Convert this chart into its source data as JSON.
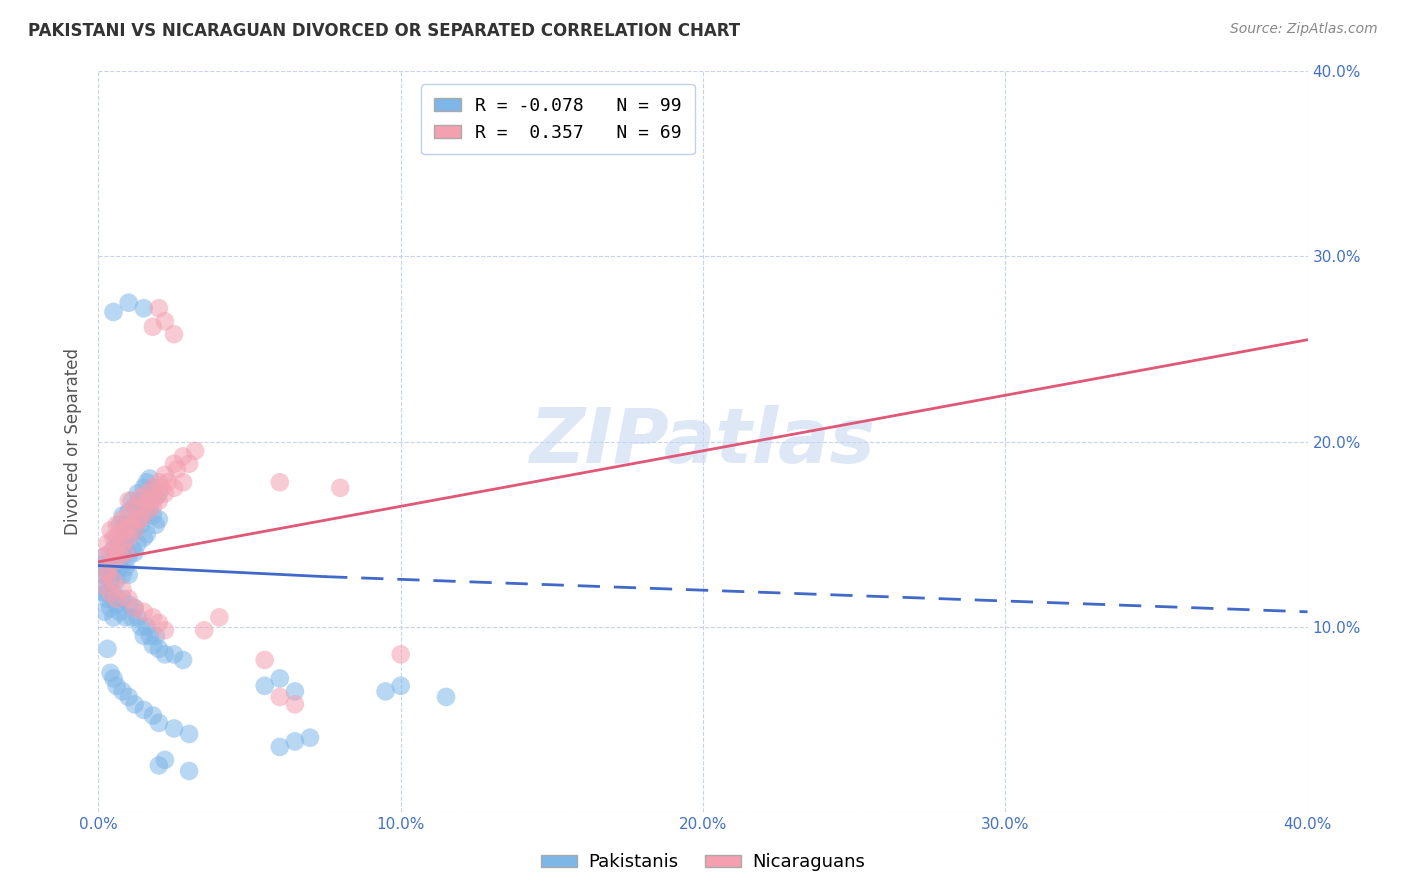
{
  "title": "PAKISTANI VS NICARAGUAN DIVORCED OR SEPARATED CORRELATION CHART",
  "source": "Source: ZipAtlas.com",
  "ylabel": "Divorced or Separated",
  "xlabel_pakistanis": "Pakistanis",
  "xlabel_nicaraguans": "Nicaraguans",
  "xlim": [
    0.0,
    0.4
  ],
  "ylim": [
    0.0,
    0.4
  ],
  "xticks": [
    0.0,
    0.1,
    0.2,
    0.3,
    0.4
  ],
  "yticks": [
    0.1,
    0.2,
    0.3,
    0.4
  ],
  "right_yticks": [
    0.1,
    0.2,
    0.3,
    0.4
  ],
  "tick_labels_x": [
    "0.0%",
    "10.0%",
    "20.0%",
    "30.0%",
    "40.0%"
  ],
  "tick_labels_y_right": [
    "10.0%",
    "20.0%",
    "30.0%",
    "40.0%"
  ],
  "blue_color": "#7EB6E8",
  "pink_color": "#F4A0B0",
  "blue_line_color": "#4169C8",
  "pink_line_color": "#E05878",
  "legend_blue_R": "-0.078",
  "legend_blue_N": "99",
  "legend_pink_R": "0.357",
  "legend_pink_N": "69",
  "watermark": "ZIPatlas",
  "watermark_color": "#C8D8F0",
  "blue_line_solid": [
    [
      0.0,
      0.133
    ],
    [
      0.075,
      0.127
    ]
  ],
  "blue_line_dashed": [
    [
      0.075,
      0.127
    ],
    [
      0.4,
      0.108
    ]
  ],
  "pink_line": [
    [
      0.0,
      0.135
    ],
    [
      0.4,
      0.255
    ]
  ],
  "blue_scatter": [
    [
      0.001,
      0.133
    ],
    [
      0.002,
      0.138
    ],
    [
      0.002,
      0.122
    ],
    [
      0.003,
      0.118
    ],
    [
      0.003,
      0.128
    ],
    [
      0.004,
      0.135
    ],
    [
      0.004,
      0.125
    ],
    [
      0.005,
      0.142
    ],
    [
      0.005,
      0.13
    ],
    [
      0.005,
      0.118
    ],
    [
      0.006,
      0.148
    ],
    [
      0.006,
      0.138
    ],
    [
      0.006,
      0.125
    ],
    [
      0.007,
      0.155
    ],
    [
      0.007,
      0.145
    ],
    [
      0.007,
      0.132
    ],
    [
      0.008,
      0.16
    ],
    [
      0.008,
      0.148
    ],
    [
      0.008,
      0.138
    ],
    [
      0.008,
      0.128
    ],
    [
      0.009,
      0.155
    ],
    [
      0.009,
      0.142
    ],
    [
      0.009,
      0.132
    ],
    [
      0.01,
      0.162
    ],
    [
      0.01,
      0.15
    ],
    [
      0.01,
      0.138
    ],
    [
      0.01,
      0.128
    ],
    [
      0.011,
      0.168
    ],
    [
      0.011,
      0.155
    ],
    [
      0.011,
      0.142
    ],
    [
      0.012,
      0.165
    ],
    [
      0.012,
      0.152
    ],
    [
      0.012,
      0.14
    ],
    [
      0.013,
      0.172
    ],
    [
      0.013,
      0.158
    ],
    [
      0.013,
      0.145
    ],
    [
      0.014,
      0.168
    ],
    [
      0.014,
      0.155
    ],
    [
      0.015,
      0.175
    ],
    [
      0.015,
      0.16
    ],
    [
      0.015,
      0.148
    ],
    [
      0.016,
      0.178
    ],
    [
      0.016,
      0.162
    ],
    [
      0.016,
      0.15
    ],
    [
      0.017,
      0.18
    ],
    [
      0.017,
      0.165
    ],
    [
      0.018,
      0.175
    ],
    [
      0.018,
      0.16
    ],
    [
      0.019,
      0.17
    ],
    [
      0.019,
      0.155
    ],
    [
      0.02,
      0.172
    ],
    [
      0.02,
      0.158
    ],
    [
      0.001,
      0.128
    ],
    [
      0.002,
      0.118
    ],
    [
      0.002,
      0.108
    ],
    [
      0.003,
      0.115
    ],
    [
      0.004,
      0.11
    ],
    [
      0.005,
      0.105
    ],
    [
      0.006,
      0.112
    ],
    [
      0.007,
      0.108
    ],
    [
      0.008,
      0.115
    ],
    [
      0.009,
      0.105
    ],
    [
      0.01,
      0.112
    ],
    [
      0.011,
      0.105
    ],
    [
      0.012,
      0.11
    ],
    [
      0.013,
      0.105
    ],
    [
      0.014,
      0.1
    ],
    [
      0.015,
      0.095
    ],
    [
      0.016,
      0.1
    ],
    [
      0.017,
      0.095
    ],
    [
      0.018,
      0.09
    ],
    [
      0.019,
      0.095
    ],
    [
      0.02,
      0.088
    ],
    [
      0.022,
      0.085
    ],
    [
      0.025,
      0.085
    ],
    [
      0.028,
      0.082
    ],
    [
      0.003,
      0.088
    ],
    [
      0.004,
      0.075
    ],
    [
      0.005,
      0.072
    ],
    [
      0.006,
      0.068
    ],
    [
      0.008,
      0.065
    ],
    [
      0.01,
      0.062
    ],
    [
      0.012,
      0.058
    ],
    [
      0.015,
      0.055
    ],
    [
      0.018,
      0.052
    ],
    [
      0.02,
      0.048
    ],
    [
      0.025,
      0.045
    ],
    [
      0.03,
      0.042
    ],
    [
      0.005,
      0.27
    ],
    [
      0.01,
      0.275
    ],
    [
      0.015,
      0.272
    ],
    [
      0.02,
      0.025
    ],
    [
      0.03,
      0.022
    ],
    [
      0.022,
      0.028
    ],
    [
      0.06,
      0.035
    ],
    [
      0.065,
      0.038
    ],
    [
      0.07,
      0.04
    ],
    [
      0.055,
      0.068
    ],
    [
      0.06,
      0.072
    ],
    [
      0.065,
      0.065
    ],
    [
      0.095,
      0.065
    ],
    [
      0.1,
      0.068
    ],
    [
      0.115,
      0.062
    ]
  ],
  "pink_scatter": [
    [
      0.002,
      0.138
    ],
    [
      0.003,
      0.145
    ],
    [
      0.004,
      0.152
    ],
    [
      0.005,
      0.148
    ],
    [
      0.006,
      0.155
    ],
    [
      0.007,
      0.15
    ],
    [
      0.008,
      0.158
    ],
    [
      0.009,
      0.152
    ],
    [
      0.01,
      0.16
    ],
    [
      0.01,
      0.168
    ],
    [
      0.011,
      0.155
    ],
    [
      0.012,
      0.165
    ],
    [
      0.013,
      0.158
    ],
    [
      0.014,
      0.17
    ],
    [
      0.015,
      0.165
    ],
    [
      0.016,
      0.172
    ],
    [
      0.017,
      0.168
    ],
    [
      0.018,
      0.175
    ],
    [
      0.019,
      0.17
    ],
    [
      0.02,
      0.178
    ],
    [
      0.021,
      0.175
    ],
    [
      0.022,
      0.182
    ],
    [
      0.023,
      0.178
    ],
    [
      0.025,
      0.188
    ],
    [
      0.026,
      0.185
    ],
    [
      0.028,
      0.192
    ],
    [
      0.03,
      0.188
    ],
    [
      0.032,
      0.195
    ],
    [
      0.003,
      0.13
    ],
    [
      0.004,
      0.14
    ],
    [
      0.005,
      0.135
    ],
    [
      0.006,
      0.142
    ],
    [
      0.007,
      0.138
    ],
    [
      0.008,
      0.145
    ],
    [
      0.009,
      0.14
    ],
    [
      0.01,
      0.148
    ],
    [
      0.012,
      0.152
    ],
    [
      0.014,
      0.158
    ],
    [
      0.016,
      0.162
    ],
    [
      0.018,
      0.165
    ],
    [
      0.02,
      0.168
    ],
    [
      0.022,
      0.172
    ],
    [
      0.025,
      0.175
    ],
    [
      0.028,
      0.178
    ],
    [
      0.002,
      0.122
    ],
    [
      0.003,
      0.128
    ],
    [
      0.004,
      0.118
    ],
    [
      0.005,
      0.125
    ],
    [
      0.006,
      0.115
    ],
    [
      0.008,
      0.12
    ],
    [
      0.01,
      0.115
    ],
    [
      0.012,
      0.11
    ],
    [
      0.015,
      0.108
    ],
    [
      0.018,
      0.105
    ],
    [
      0.02,
      0.102
    ],
    [
      0.022,
      0.098
    ],
    [
      0.018,
      0.262
    ],
    [
      0.02,
      0.272
    ],
    [
      0.022,
      0.265
    ],
    [
      0.025,
      0.258
    ],
    [
      0.035,
      0.098
    ],
    [
      0.04,
      0.105
    ],
    [
      0.06,
      0.178
    ],
    [
      0.055,
      0.082
    ],
    [
      0.06,
      0.062
    ],
    [
      0.065,
      0.058
    ],
    [
      0.08,
      0.175
    ],
    [
      0.1,
      0.085
    ]
  ]
}
